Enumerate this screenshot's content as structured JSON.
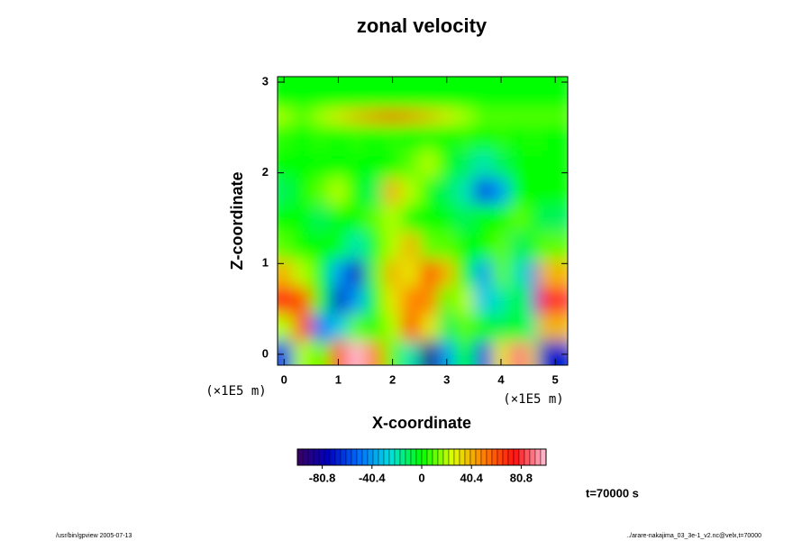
{
  "chart_data": {
    "type": "heatmap",
    "title": "zonal velocity",
    "xlabel": "X-coordinate",
    "ylabel": "Z-coordinate",
    "x_unit": "(×1E5 m)",
    "y_unit": "(×1E5 m)",
    "time_label": "t=70000 s",
    "footer_left": "/usr/bin/gpview 2005-07-13",
    "footer_right": "../arare-nakajima_03_3e-1_v2.nc@velx,t=70000",
    "xlim": [
      -0.12,
      5.23
    ],
    "ylim": [
      -0.12,
      3.06
    ],
    "xticks": [
      0,
      1,
      2,
      3,
      4,
      5
    ],
    "yticks": [
      0,
      1,
      2,
      3
    ],
    "x": [
      0.0,
      0.33,
      0.67,
      1.0,
      1.33,
      1.67,
      2.0,
      2.33,
      2.67,
      3.0,
      3.33,
      3.67,
      4.0,
      4.33,
      4.67,
      5.0
    ],
    "y": [
      0.0,
      0.3,
      0.6,
      0.9,
      1.2,
      1.5,
      1.8,
      2.1,
      2.4,
      2.7,
      3.0
    ],
    "z": [
      [
        -60,
        20,
        10,
        60,
        100,
        50,
        10,
        -20,
        -90,
        -40,
        0,
        -60,
        30,
        90,
        30,
        -70
      ],
      [
        20,
        60,
        -50,
        -30,
        10,
        0,
        20,
        60,
        30,
        -10,
        10,
        0,
        -10,
        0,
        -20,
        40
      ],
      [
        70,
        60,
        0,
        -70,
        -40,
        0,
        30,
        50,
        50,
        10,
        20,
        -30,
        -20,
        0,
        -50,
        80
      ],
      [
        40,
        20,
        0,
        -40,
        -70,
        10,
        40,
        30,
        60,
        40,
        0,
        -40,
        10,
        -20,
        -50,
        40
      ],
      [
        10,
        0,
        0,
        0,
        -20,
        0,
        20,
        40,
        10,
        10,
        0,
        0,
        10,
        -10,
        0,
        10
      ],
      [
        0,
        0,
        -10,
        0,
        0,
        10,
        20,
        0,
        0,
        0,
        -10,
        0,
        0,
        10,
        0,
        -10
      ],
      [
        -10,
        0,
        10,
        20,
        0,
        -10,
        40,
        20,
        0,
        -10,
        -20,
        -60,
        -40,
        0,
        0,
        0
      ],
      [
        0,
        0,
        0,
        0,
        0,
        0,
        0,
        10,
        20,
        0,
        -10,
        -20,
        -10,
        0,
        0,
        0
      ],
      [
        5,
        0,
        5,
        0,
        5,
        0,
        5,
        0,
        5,
        0,
        5,
        0,
        5,
        0,
        5,
        0
      ],
      [
        20,
        10,
        20,
        30,
        40,
        50,
        60,
        50,
        40,
        30,
        20,
        10,
        10,
        10,
        10,
        10
      ],
      [
        0,
        0,
        0,
        0,
        0,
        0,
        0,
        0,
        0,
        0,
        0,
        0,
        0,
        0,
        0,
        0
      ]
    ],
    "clim": [
      -101,
      101
    ],
    "cticks": [
      -80.8,
      -40.4,
      0,
      40.4,
      80.8
    ],
    "colormap": [
      "#3a0060",
      "#0000c0",
      "#0070ff",
      "#00e0e0",
      "#00ff00",
      "#e0ff00",
      "#ff8000",
      "#ff1010",
      "#ffc0d8"
    ]
  }
}
